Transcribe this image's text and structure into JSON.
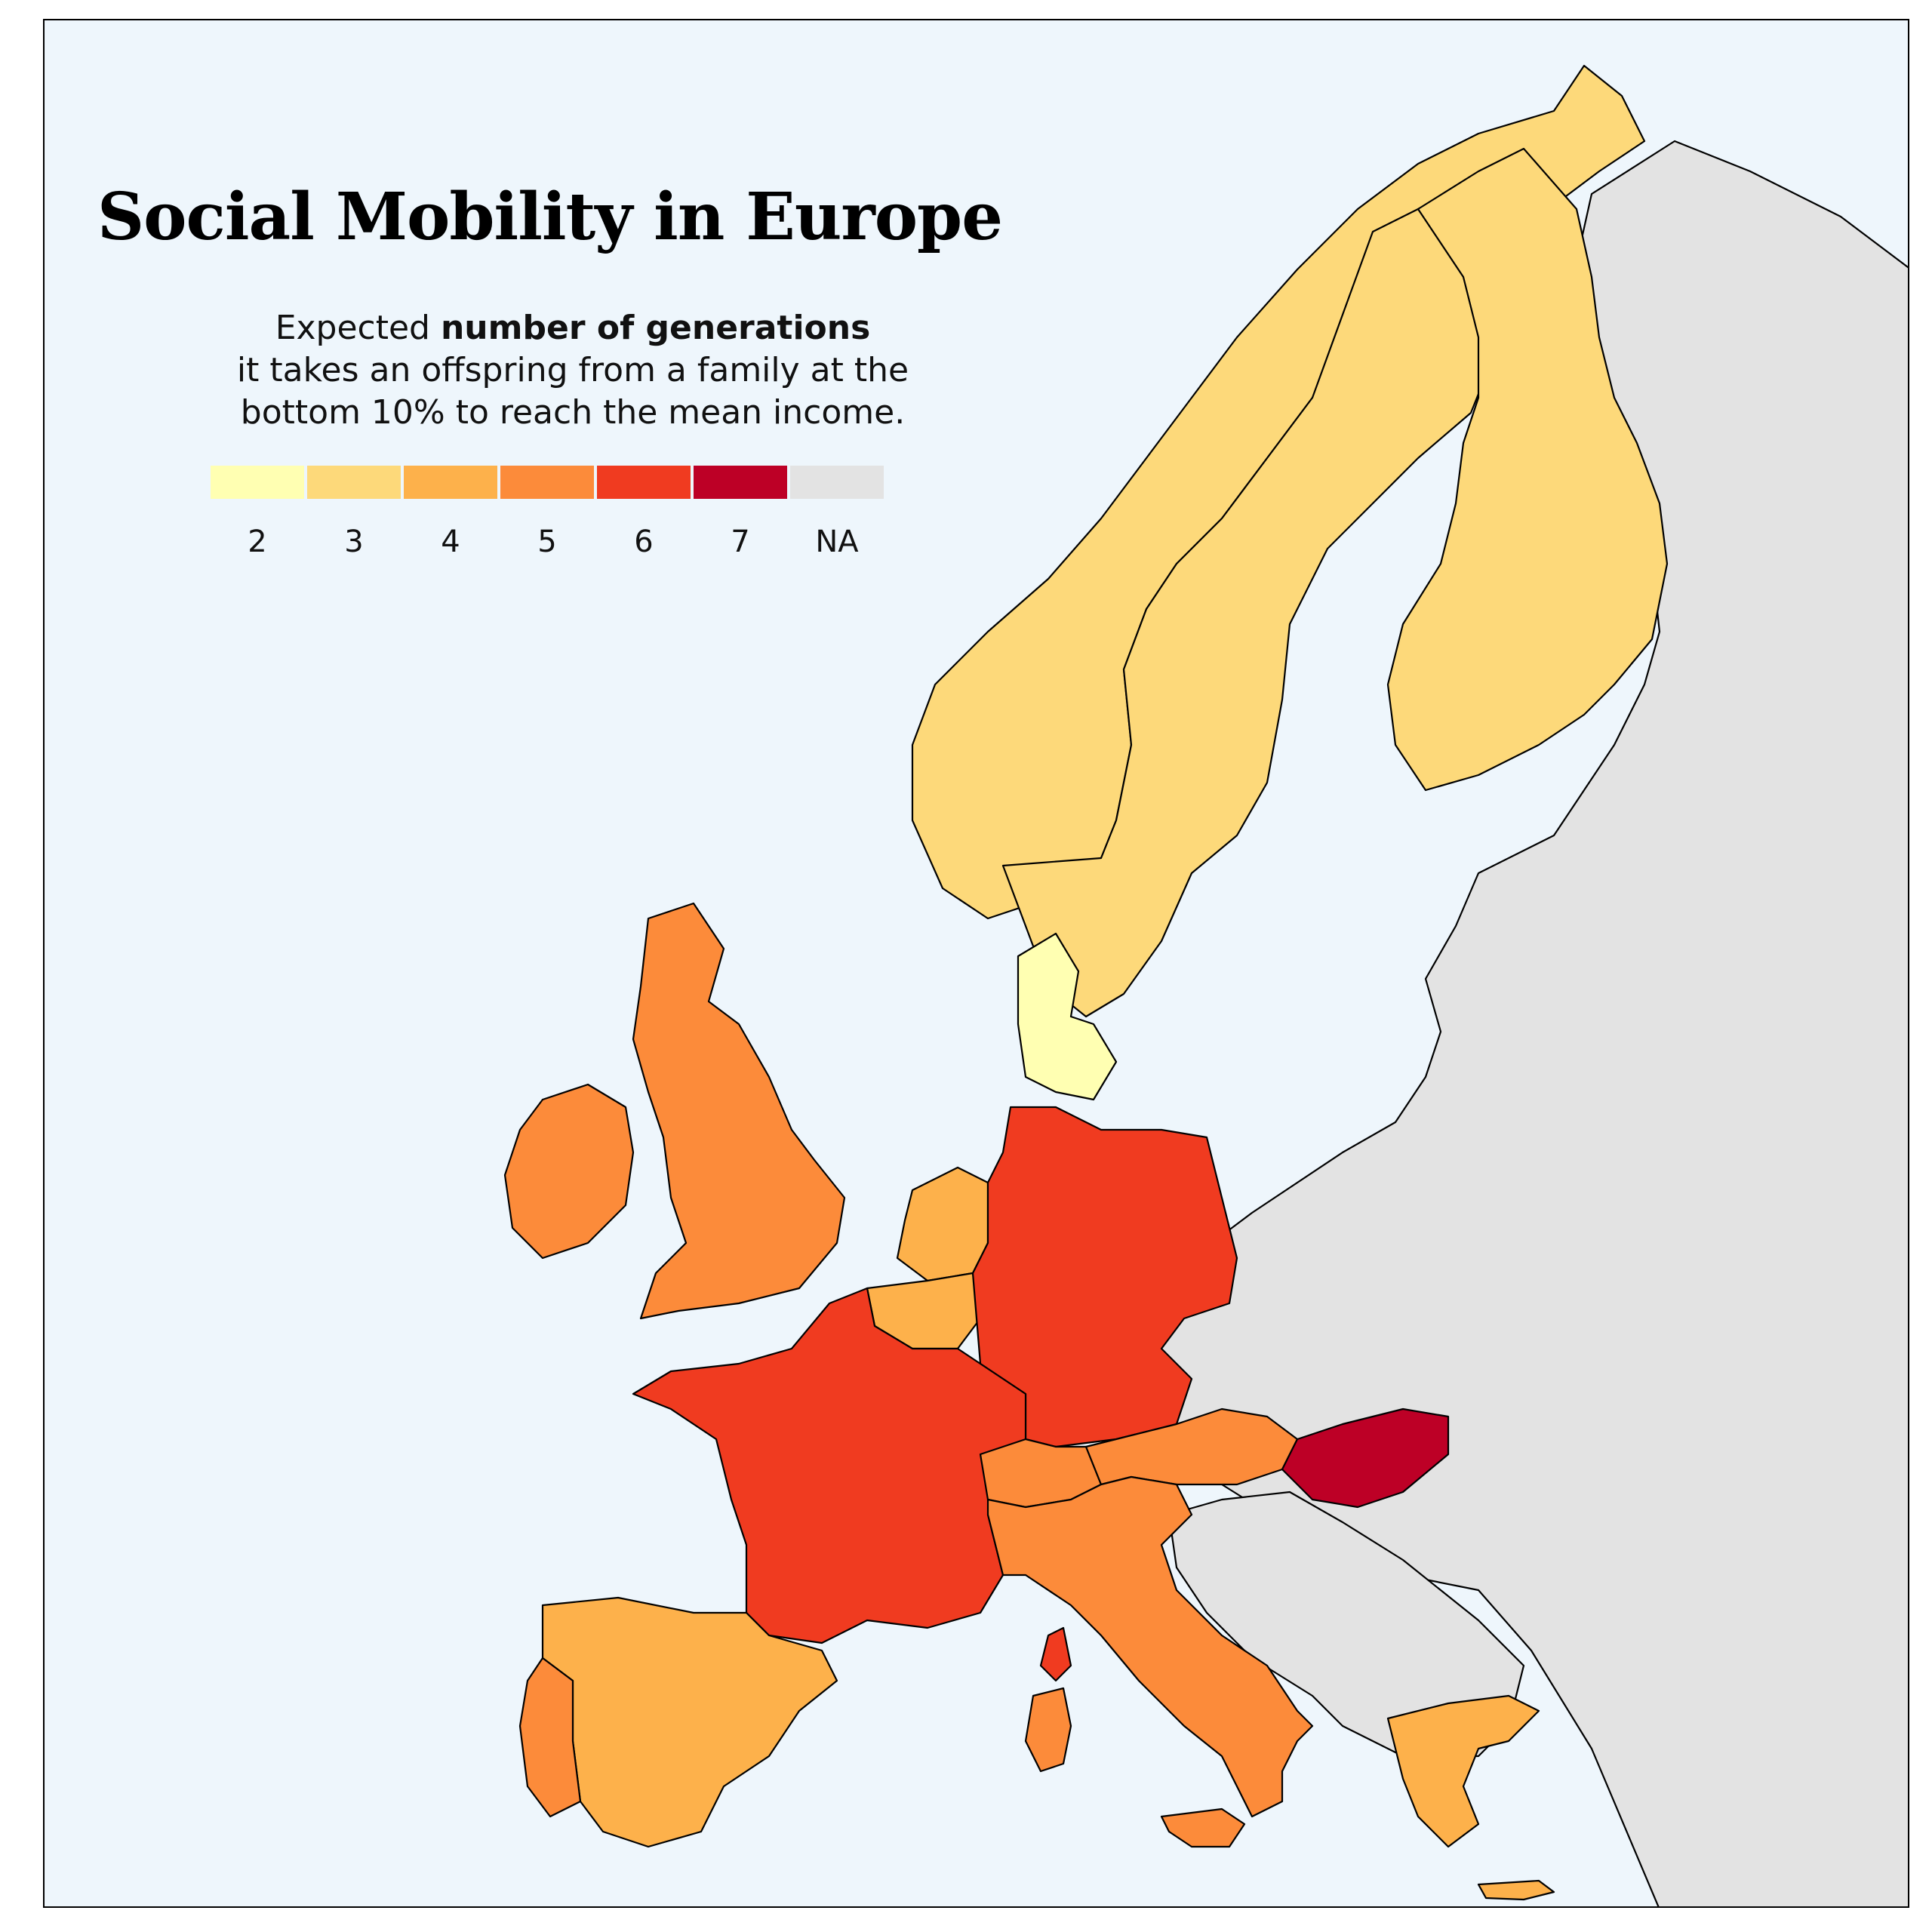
{
  "title": "Social Mobility in Europe",
  "subtitle": {
    "line1_prefix": "Expected ",
    "line1_bold": "number of generations",
    "line2": "it takes an offspring from a family at the",
    "line3": "bottom 10% to reach the mean income."
  },
  "legend": {
    "items": [
      {
        "label": "2",
        "color": "#ffffb2"
      },
      {
        "label": "3",
        "color": "#fdd97a"
      },
      {
        "label": "4",
        "color": "#fdb14b"
      },
      {
        "label": "5",
        "color": "#fc8b3a"
      },
      {
        "label": "6",
        "color": "#f03b20"
      },
      {
        "label": "7",
        "color": "#bd0026"
      },
      {
        "label": "NA",
        "color": "#e3e3e3"
      }
    ]
  },
  "regions": [
    {
      "name": "Norway",
      "value": "3"
    },
    {
      "name": "Sweden",
      "value": "3"
    },
    {
      "name": "Finland",
      "value": "3"
    },
    {
      "name": "Denmark",
      "value": "2"
    },
    {
      "name": "United Kingdom",
      "value": "5"
    },
    {
      "name": "Ireland",
      "value": "5"
    },
    {
      "name": "Netherlands",
      "value": "4"
    },
    {
      "name": "Belgium",
      "value": "4"
    },
    {
      "name": "Germany",
      "value": "6"
    },
    {
      "name": "France",
      "value": "6"
    },
    {
      "name": "Spain",
      "value": "4"
    },
    {
      "name": "Portugal",
      "value": "5"
    },
    {
      "name": "Switzerland",
      "value": "5"
    },
    {
      "name": "Austria",
      "value": "5"
    },
    {
      "name": "Italy",
      "value": "5"
    },
    {
      "name": "Hungary",
      "value": "7"
    },
    {
      "name": "Greece",
      "value": "4"
    },
    {
      "name": "Other countries",
      "value": "NA"
    }
  ]
}
